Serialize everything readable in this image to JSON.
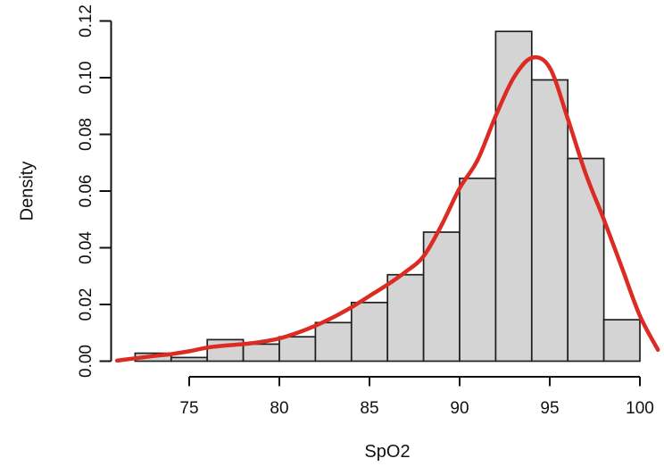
{
  "chart_data": {
    "type": "bar",
    "subtype": "histogram-with-density-curve",
    "title": "",
    "xlabel": "SpO2",
    "ylabel": "Density",
    "xlim": [
      70.8,
      101.3
    ],
    "ylim": [
      0,
      0.12
    ],
    "x_ticks": [
      75,
      80,
      85,
      90,
      95,
      100
    ],
    "x_tick_labels": [
      "75",
      "80",
      "85",
      "90",
      "95",
      "100"
    ],
    "y_ticks": [
      0,
      0.02,
      0.04,
      0.06,
      0.08,
      0.1,
      0.12
    ],
    "y_tick_labels": [
      "0.00",
      "0.02",
      "0.04",
      "0.06",
      "0.08",
      "0.10",
      "0.12"
    ],
    "grid": false,
    "legend": null,
    "histogram": {
      "bin_width": 2,
      "bin_edges": [
        72,
        74,
        76,
        78,
        80,
        82,
        84,
        86,
        88,
        90,
        92,
        94,
        96,
        98,
        100
      ],
      "densities": [
        0.0028,
        0.0013,
        0.0076,
        0.006,
        0.0086,
        0.0136,
        0.0207,
        0.0305,
        0.0455,
        0.0645,
        0.1163,
        0.0992,
        0.0715,
        0.0146
      ]
    },
    "density_curve": {
      "x": [
        71,
        72,
        73,
        74,
        75,
        76,
        77,
        78,
        79,
        80,
        81,
        82,
        83,
        84,
        85,
        86,
        87,
        88,
        89,
        90,
        91,
        92,
        93,
        94,
        95,
        96,
        97,
        98,
        99,
        100,
        101
      ],
      "y": [
        0.0002,
        0.001,
        0.0018,
        0.0025,
        0.0035,
        0.0048,
        0.0055,
        0.006,
        0.0068,
        0.008,
        0.01,
        0.0125,
        0.0155,
        0.019,
        0.023,
        0.027,
        0.0315,
        0.037,
        0.048,
        0.061,
        0.071,
        0.0865,
        0.1,
        0.107,
        0.1035,
        0.0855,
        0.066,
        0.05,
        0.033,
        0.016,
        0.004
      ]
    },
    "colors": {
      "background": "#ffffff",
      "bar_fill": "#d4d4d4",
      "bar_border": "#1f1f1f",
      "curve": "#dc2b22",
      "axis": "#111111"
    }
  }
}
